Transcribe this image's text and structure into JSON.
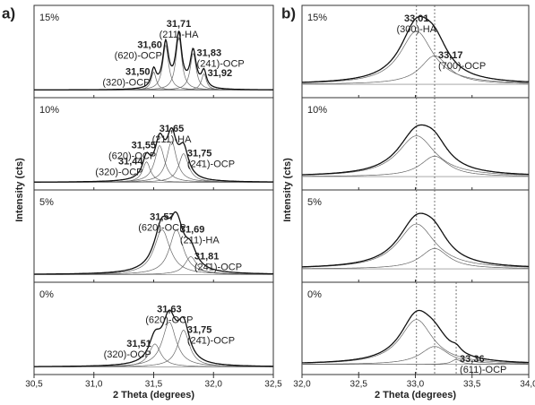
{
  "chart_data": [
    {
      "type": "line",
      "panel_label": "a)",
      "x_label": "2 Theta (degrees)",
      "y_label": "Intensity (cts)",
      "xlim": [
        30.5,
        32.5
      ],
      "xticks": [
        {
          "value": 30.5,
          "label": "30,5"
        },
        {
          "value": 31.0,
          "label": "31,0"
        },
        {
          "value": 31.5,
          "label": "31,5"
        },
        {
          "value": 32.0,
          "label": "32,0"
        },
        {
          "value": 32.5,
          "label": "32,5"
        }
      ],
      "ylim": [
        0,
        1
      ],
      "marker_lines": false,
      "subplots": [
        {
          "label": "15%",
          "baseline": 0.05,
          "peaks": [
            {
              "center": 31.5,
              "center_label": "31,50",
              "name": "(320)-OCP",
              "height": 0.22,
              "fwhm": 0.05
            },
            {
              "center": 31.6,
              "center_label": "31,60",
              "name": "(620)-OCP",
              "height": 0.55,
              "fwhm": 0.06
            },
            {
              "center": 31.71,
              "center_label": "31,71",
              "name": "(211)-HA",
              "height": 0.65,
              "fwhm": 0.06
            },
            {
              "center": 31.83,
              "center_label": "31,83",
              "name": "(241)-OCP",
              "height": 0.45,
              "fwhm": 0.06
            },
            {
              "center": 31.92,
              "center_label": "31,92",
              "height": 0.2,
              "fwhm": 0.05
            }
          ]
        },
        {
          "label": "10%",
          "baseline": 0.05,
          "peaks": [
            {
              "center": 31.44,
              "center_label": "31,44",
              "name": "(320)-OCP",
              "height": 0.25,
              "fwhm": 0.08
            },
            {
              "center": 31.55,
              "center_label": "31,55",
              "name": "(620)-OCP",
              "height": 0.45,
              "fwhm": 0.1
            },
            {
              "center": 31.65,
              "center_label": "31,65",
              "name": "(211)-HA",
              "height": 0.5,
              "fwhm": 0.1
            },
            {
              "center": 31.75,
              "center_label": "31,75",
              "name": "(24̄1)-OCP",
              "height": 0.35,
              "fwhm": 0.1
            }
          ]
        },
        {
          "label": "5%",
          "baseline": 0.05,
          "peaks": [
            {
              "center": 31.57,
              "center_label": "31,57",
              "name": "(620)-OCP",
              "height": 0.55,
              "fwhm": 0.16
            },
            {
              "center": 31.69,
              "center_label": "31,69",
              "name": "(211)-HA",
              "height": 0.55,
              "fwhm": 0.14
            },
            {
              "center": 31.81,
              "center_label": "31,81",
              "name": "(24̄1)-OCP",
              "height": 0.22,
              "fwhm": 0.12
            }
          ]
        },
        {
          "label": "0%",
          "baseline": 0.05,
          "peaks": [
            {
              "center": 31.51,
              "center_label": "31,51",
              "name": "(320)-OCP",
              "height": 0.28,
              "fwhm": 0.12
            },
            {
              "center": 31.63,
              "center_label": "31,63",
              "name": "(620)-OCP",
              "height": 0.55,
              "fwhm": 0.14
            },
            {
              "center": 31.75,
              "center_label": "31,75",
              "name": "(24̄1)-OCP",
              "height": 0.45,
              "fwhm": 0.12
            }
          ]
        }
      ]
    },
    {
      "type": "line",
      "panel_label": "b)",
      "x_label": "2 Theta (degrees)",
      "y_label": "Intensity (cts)",
      "xlim": [
        32.0,
        34.0
      ],
      "xticks": [
        {
          "value": 32.0,
          "label": "32,0"
        },
        {
          "value": 32.5,
          "label": "32,5"
        },
        {
          "value": 33.0,
          "label": "33,0"
        },
        {
          "value": 33.5,
          "label": "33,5"
        },
        {
          "value": 34.0,
          "label": "34,0"
        }
      ],
      "ylim": [
        0,
        1
      ],
      "marker_lines": true,
      "subplots": [
        {
          "label": "15%",
          "baseline": 0.12,
          "peaks": [
            {
              "center": 33.01,
              "center_label": "33,01",
              "name": "(300)-HA",
              "height": 0.65,
              "fwhm": 0.35
            },
            {
              "center": 33.17,
              "center_label": "33,17",
              "name": "(700)-OCP",
              "height": 0.35,
              "fwhm": 0.3
            }
          ]
        },
        {
          "label": "10%",
          "baseline": 0.12,
          "peaks": [
            {
              "center": 33.01,
              "height": 0.5,
              "fwhm": 0.4
            },
            {
              "center": 33.17,
              "height": 0.25,
              "fwhm": 0.3
            }
          ]
        },
        {
          "label": "5%",
          "baseline": 0.12,
          "peaks": [
            {
              "center": 33.01,
              "height": 0.55,
              "fwhm": 0.4
            },
            {
              "center": 33.17,
              "height": 0.25,
              "fwhm": 0.3
            }
          ]
        },
        {
          "label": "0%",
          "baseline": 0.08,
          "peaks": [
            {
              "center": 33.01,
              "height": 0.55,
              "fwhm": 0.35
            },
            {
              "center": 33.17,
              "height": 0.22,
              "fwhm": 0.3
            },
            {
              "center": 33.36,
              "center_label": "33,36",
              "name": "(611)-OCP",
              "height": 0.06,
              "fwhm": 0.1
            }
          ]
        }
      ]
    }
  ]
}
